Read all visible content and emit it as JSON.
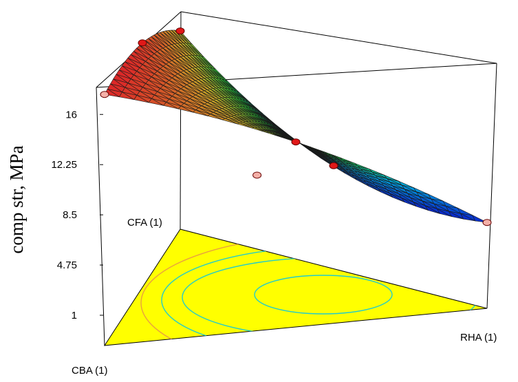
{
  "chart_data": {
    "type": "ternary-response-surface-3d",
    "zlabel": "comp str, MPa",
    "z_ticks": [
      1,
      4.75,
      8.5,
      12.25,
      16
    ],
    "zlim": [
      1,
      16
    ],
    "components": {
      "top": "CFA (1)",
      "left": "CBA (1)",
      "right": "RHA (1)"
    },
    "design_points": [
      {
        "cba": 1,
        "cfa": 0,
        "rha": 0,
        "z": 19.0
      },
      {
        "cba": 0,
        "cfa": 1,
        "rha": 0,
        "z": 15.0
      },
      {
        "cba": 0,
        "cfa": 0,
        "rha": 1,
        "z": 6.5
      },
      {
        "cba": 0.5,
        "cfa": 0.5,
        "rha": 0,
        "z": 18.5
      },
      {
        "cba": 0.5,
        "cfa": 0,
        "rha": 0.5,
        "z": 14.0
      },
      {
        "cba": 0,
        "cfa": 0.5,
        "rha": 0.5,
        "z": 7.8
      },
      {
        "cba": 0.333,
        "cfa": 0.333,
        "rha": 0.333,
        "z": 9.0
      }
    ],
    "surface_colors": {
      "low": "#0a1ec8",
      "mid": "#20e020",
      "high": "#e02020"
    },
    "contour_base_color": "#ffff00"
  }
}
